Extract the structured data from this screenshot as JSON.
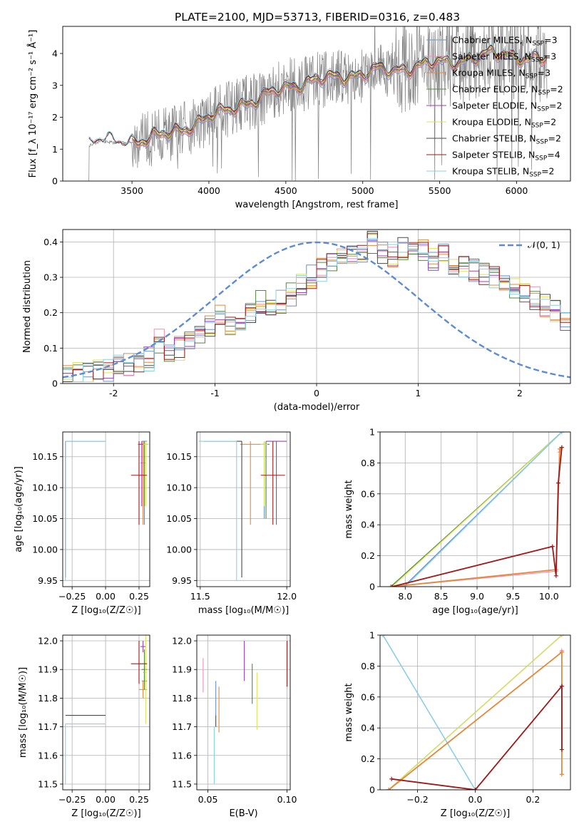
{
  "figure_title": "PLATE=2100, MJD=53713, FIBERID=0316, z=0.483",
  "colors": {
    "chab_miles": "#6a8fd0",
    "salp_miles": "#ee8fb5",
    "krou_miles": "#e5893a",
    "chab_elodie": "#4f8a3a",
    "salp_elodie": "#9b3fbf",
    "krou_elodie": "#dde35a",
    "chab_stelib": "#4a4a4a",
    "salp_stelib": "#a01818",
    "krou_stelib": "#86d2e6",
    "data": "#808080",
    "grid": "#b0b0b0"
  },
  "chart_data": [
    {
      "id": "spectrum",
      "type": "line",
      "xlabel": "wavelength [Angstrom, rest frame]",
      "ylabel": "Flux [f_λ 10⁻¹⁷ erg cm⁻² s⁻¹ Å⁻¹]",
      "xlim": [
        3050,
        6350
      ],
      "ylim": [
        0,
        4.85
      ],
      "xticks": [
        3500,
        4000,
        4500,
        5000,
        5500,
        6000
      ],
      "yticks": [
        0,
        1,
        2,
        3,
        4
      ],
      "grid": false,
      "legend": "top-right",
      "legend_entries": [
        {
          "label": "Chabrier MILES, N",
          "sub": "SSP",
          "suffix": "=3",
          "color_key": "chab_miles"
        },
        {
          "label": "Salpeter MILES, N",
          "sub": "SSP",
          "suffix": "=3",
          "color_key": "salp_miles"
        },
        {
          "label": "Kroupa MILES, N",
          "sub": "SSP",
          "suffix": "=3",
          "color_key": "krou_miles"
        },
        {
          "label": "Chabrier ELODIE, N",
          "sub": "SSP",
          "suffix": "=2",
          "color_key": "chab_elodie"
        },
        {
          "label": "Salpeter ELODIE, N",
          "sub": "SSP",
          "suffix": "=2",
          "color_key": "salp_elodie"
        },
        {
          "label": "Kroupa ELODIE, N",
          "sub": "SSP",
          "suffix": "=2",
          "color_key": "krou_elodie"
        },
        {
          "label": "Chabrier STELIB, N",
          "sub": "SSP",
          "suffix": "=2",
          "color_key": "chab_stelib"
        },
        {
          "label": "Salpeter STELIB, N",
          "sub": "SSP",
          "suffix": "=4",
          "color_key": "salp_stelib"
        },
        {
          "label": "Kroupa STELIB, N",
          "sub": "SSP",
          "suffix": "=2",
          "color_key": "krou_stelib"
        }
      ],
      "model_continuum": {
        "x": [
          3220,
          3300,
          3400,
          3500,
          3600,
          3700,
          3800,
          3900,
          4000,
          4100,
          4200,
          4300,
          4400,
          4500,
          4600,
          4700,
          4800,
          4900,
          5000,
          5100,
          5200,
          5300,
          5400,
          5500,
          5600,
          5700,
          5800,
          5900,
          6000,
          6100,
          6200
        ],
        "y": [
          1.12,
          1.25,
          1.2,
          1.22,
          1.3,
          1.45,
          1.6,
          1.75,
          2.0,
          2.2,
          2.4,
          2.5,
          2.75,
          2.95,
          3.05,
          3.15,
          3.25,
          3.3,
          3.35,
          3.5,
          3.45,
          3.55,
          3.65,
          3.7,
          3.75,
          3.85,
          3.95,
          4.0,
          3.9,
          3.85,
          3.8
        ]
      },
      "data_noise_start": 3500
    },
    {
      "id": "residuals",
      "type": "line",
      "xlabel": "(data-model)/error",
      "ylabel": "Normed distribution",
      "xlim": [
        -2.5,
        2.5
      ],
      "ylim": [
        0,
        0.435
      ],
      "xticks": [
        -2,
        -1,
        0,
        1,
        2
      ],
      "yticks": [
        0.0,
        0.1,
        0.2,
        0.3,
        0.4
      ],
      "grid": true,
      "legend": "top-right",
      "legend_label": "𝒩(0, 1)",
      "gaussian": {
        "mean": 0,
        "sigma": 1,
        "color": "#5b8bd6"
      },
      "hist_base": {
        "bin_width": 0.1,
        "x_start": -2.5,
        "values": [
          0.02,
          0.025,
          0.03,
          0.035,
          0.04,
          0.045,
          0.05,
          0.06,
          0.07,
          0.12,
          0.08,
          0.1,
          0.12,
          0.14,
          0.16,
          0.2,
          0.17,
          0.18,
          0.2,
          0.23,
          0.21,
          0.23,
          0.25,
          0.28,
          0.3,
          0.32,
          0.34,
          0.35,
          0.36,
          0.37,
          0.4,
          0.37,
          0.36,
          0.38,
          0.39,
          0.38,
          0.35,
          0.36,
          0.34,
          0.33,
          0.32,
          0.31,
          0.3,
          0.28,
          0.27,
          0.25,
          0.24,
          0.22,
          0.2,
          0.18
        ]
      }
    },
    {
      "id": "age_vs_Z",
      "type": "scatter",
      "xlabel": "Z [log₁₀(Z/Z☉)]",
      "ylabel": "age  [log₁₀(age/yr)]",
      "xlim": [
        -0.32,
        0.33
      ],
      "ylim": [
        9.94,
        10.19
      ],
      "xticks": [
        -0.25,
        0.0,
        0.25
      ],
      "xtick_labels": [
        "−0.25",
        "0.00",
        "0.25"
      ],
      "yticks": [
        9.95,
        10.0,
        10.05,
        10.1,
        10.15
      ],
      "ytick_labels": [
        "9.95",
        "10.00",
        "10.05",
        "10.10",
        "10.15"
      ],
      "grid": true,
      "points": [
        {
          "x": 0.29,
          "y": 10.175,
          "xe": 0.02,
          "ye": [
            0.135,
            0.0
          ],
          "c": "chab_miles"
        },
        {
          "x": 0.28,
          "y": 10.14,
          "xe": 0.02,
          "ye": [
            0.09,
            0.035
          ],
          "c": "salp_miles"
        },
        {
          "x": 0.28,
          "y": 10.17,
          "xe": 0.04,
          "ye": [
            0.13,
            0.005
          ],
          "c": "krou_miles"
        },
        {
          "x": 0.29,
          "y": 10.17,
          "xe": 0.02,
          "ye": [
            0.1,
            0.005
          ],
          "c": "chab_elodie"
        },
        {
          "x": 0.27,
          "y": 10.17,
          "xe": 0.02,
          "ye": [
            0.1,
            0.005
          ],
          "c": "salp_elodie"
        },
        {
          "x": 0.3,
          "y": 10.17,
          "xe": 0.02,
          "ye": [
            0.1,
            0.005
          ],
          "c": "krou_elodie"
        },
        {
          "x": -0.3,
          "y": 10.175,
          "xe": [
            0.0,
            0.3
          ],
          "ye": [
            0.22,
            0.0
          ],
          "c": "chab_stelib"
        },
        {
          "x": 0.25,
          "y": 10.12,
          "xe": 0.06,
          "ye": [
            0.08,
            0.055
          ],
          "c": "salp_stelib"
        },
        {
          "x": -0.3,
          "y": 10.175,
          "xe": [
            0.0,
            0.3
          ],
          "ye": [
            0.225,
            0.0
          ],
          "c": "krou_stelib"
        }
      ]
    },
    {
      "id": "age_vs_mass",
      "type": "scatter",
      "xlabel": "mass [log₁₀(M/M☉)]",
      "ylabel": "",
      "xlim": [
        11.48,
        12.02
      ],
      "ylim": [
        9.94,
        10.19
      ],
      "xticks": [
        11.5,
        12.0
      ],
      "xtick_labels": [
        "11.5",
        "12.0"
      ],
      "yticks": [
        9.95,
        10.0,
        10.05,
        10.1,
        10.15
      ],
      "ytick_labels": [
        "9.95",
        "10.00",
        "10.05",
        "10.10",
        "10.15"
      ],
      "grid": true,
      "points": [
        {
          "x": 11.87,
          "y": 10.17,
          "xe": 0.02,
          "ye": [
            0.12,
            0.005
          ],
          "c": "chab_miles"
        },
        {
          "x": 11.88,
          "y": 10.17,
          "xe": 0.02,
          "ye": [
            0.1,
            0.005
          ],
          "c": "salp_miles"
        },
        {
          "x": 11.79,
          "y": 10.17,
          "xe": 0.06,
          "ye": [
            0.13,
            0.005
          ],
          "c": "krou_miles"
        },
        {
          "x": 11.88,
          "y": 10.17,
          "xe": 0.02,
          "ye": [
            0.12,
            0.005
          ],
          "c": "chab_elodie"
        },
        {
          "x": 11.94,
          "y": 10.175,
          "xe": 0.06,
          "ye": [
            0.135,
            0.0
          ],
          "c": "salp_elodie"
        },
        {
          "x": 11.87,
          "y": 10.17,
          "xe": 0.02,
          "ye": [
            0.1,
            0.005
          ],
          "c": "krou_elodie"
        },
        {
          "x": 11.74,
          "y": 10.175,
          "xe": [
            0.22,
            0.0
          ],
          "ye": [
            0.22,
            0.0
          ],
          "c": "chab_stelib"
        },
        {
          "x": 11.92,
          "y": 10.12,
          "xe": 0.07,
          "ye": [
            0.08,
            0.055
          ],
          "c": "salp_stelib"
        },
        {
          "x": 11.71,
          "y": 10.175,
          "xe": [
            0.22,
            0.0
          ],
          "ye": [
            0.225,
            0.0
          ],
          "c": "krou_stelib"
        }
      ]
    },
    {
      "id": "weight_vs_age",
      "type": "line",
      "xlabel": "age  [log₁₀(age/yr)]",
      "ylabel": "mass weight",
      "xlim": [
        7.65,
        10.3
      ],
      "ylim": [
        0,
        1.0
      ],
      "xticks": [
        8.0,
        8.5,
        9.0,
        9.5,
        10.0
      ],
      "xtick_labels": [
        "8.0",
        "8.5",
        "9.0",
        "9.5",
        "10.0"
      ],
      "yticks": [
        0.0,
        0.2,
        0.4,
        0.6,
        0.8,
        1.0
      ],
      "grid": true,
      "series": [
        {
          "c": "chab_elodie",
          "x": [
            7.8,
            10.18
          ],
          "y": [
            0.0,
            1.0
          ]
        },
        {
          "c": "krou_elodie",
          "x": [
            7.82,
            10.18
          ],
          "y": [
            0.0,
            1.0
          ]
        },
        {
          "c": "chab_miles",
          "x": [
            7.98,
            10.18
          ],
          "y": [
            0.0,
            1.0
          ]
        },
        {
          "c": "krou_stelib",
          "x": [
            8.0,
            10.18
          ],
          "y": [
            0.0,
            1.0
          ]
        },
        {
          "c": "salp_miles",
          "x": [
            7.82,
            10.1,
            10.15,
            10.18
          ],
          "y": [
            0.0,
            0.1,
            0.87,
            0.9
          ]
        },
        {
          "c": "krou_miles",
          "x": [
            7.82,
            10.1,
            10.15,
            10.18
          ],
          "y": [
            0.0,
            0.11,
            0.89,
            0.9
          ]
        },
        {
          "c": "salp_stelib",
          "x": [
            7.82,
            10.05,
            10.1,
            10.13,
            10.18
          ],
          "y": [
            0.0,
            0.26,
            0.07,
            0.67,
            0.9
          ]
        }
      ]
    },
    {
      "id": "mass_vs_Z",
      "type": "scatter",
      "xlabel": "Z [log₁₀(Z/Z☉)]",
      "ylabel": "mass [log₁₀(M/M☉)]",
      "xlim": [
        -0.32,
        0.33
      ],
      "ylim": [
        11.48,
        12.02
      ],
      "xticks": [
        -0.25,
        0.0,
        0.25
      ],
      "xtick_labels": [
        "−0.25",
        "0.00",
        "0.25"
      ],
      "yticks": [
        11.5,
        11.6,
        11.7,
        11.8,
        11.9,
        12.0
      ],
      "ytick_labels": [
        "11.5",
        "11.6",
        "11.7",
        "11.8",
        "11.9",
        "12.0"
      ],
      "grid": true,
      "points": [
        {
          "x": 0.29,
          "y": 11.86,
          "xe": 0.02,
          "ye": 0.02,
          "c": "chab_miles"
        },
        {
          "x": 0.29,
          "y": 11.89,
          "xe": 0.01,
          "ye": 0.02,
          "c": "salp_miles"
        },
        {
          "x": 0.28,
          "y": 11.83,
          "xe": 0.03,
          "ye": 0.03,
          "c": "krou_miles"
        },
        {
          "x": 0.29,
          "y": 11.9,
          "xe": 0.02,
          "ye": 0.07,
          "c": "chab_elodie"
        },
        {
          "x": 0.28,
          "y": 11.98,
          "xe": 0.02,
          "ye": 0.02,
          "c": "salp_elodie"
        },
        {
          "x": 0.3,
          "y": 11.89,
          "xe": 0.01,
          "ye": 0.18,
          "c": "krou_elodie"
        },
        {
          "x": -0.3,
          "y": 11.74,
          "xe": [
            0.0,
            0.3
          ],
          "ye": [
            0.0,
            0.0
          ],
          "c": "chab_stelib"
        },
        {
          "x": 0.25,
          "y": 11.92,
          "xe": 0.06,
          "ye": [
            0.07,
            0.08
          ],
          "c": "salp_stelib"
        },
        {
          "x": -0.3,
          "y": 11.71,
          "xe": [
            0.0,
            0.3
          ],
          "ye": [
            0.21,
            0.0
          ],
          "c": "krou_stelib"
        }
      ]
    },
    {
      "id": "mass_vs_EBV",
      "type": "scatter",
      "xlabel": "E(B-V)",
      "ylabel": "",
      "xlim": [
        0.043,
        0.102
      ],
      "ylim": [
        11.48,
        12.02
      ],
      "xticks": [
        0.05,
        0.1
      ],
      "xtick_labels": [
        "0.05",
        "0.10"
      ],
      "yticks": [
        11.5,
        11.6,
        11.7,
        11.8,
        11.9,
        12.0
      ],
      "ytick_labels": [
        "11.5",
        "11.6",
        "11.7",
        "11.8",
        "11.9",
        "12.0"
      ],
      "grid": true,
      "points": [
        {
          "x": 0.055,
          "y": 11.8,
          "xe": 0,
          "ye": 0.06,
          "c": "chab_miles"
        },
        {
          "x": 0.047,
          "y": 11.88,
          "xe": 0,
          "ye": 0.06,
          "c": "salp_miles"
        },
        {
          "x": 0.057,
          "y": 11.76,
          "xe": 0,
          "ye": 0.08,
          "c": "krou_miles"
        },
        {
          "x": 0.078,
          "y": 11.85,
          "xe": 0,
          "ye": 0.07,
          "c": "chab_elodie"
        },
        {
          "x": 0.073,
          "y": 11.93,
          "xe": 0,
          "ye": 0.07,
          "c": "salp_elodie"
        },
        {
          "x": 0.081,
          "y": 11.79,
          "xe": 0,
          "ye": 0.1,
          "c": "krou_elodie"
        },
        {
          "x": 0.055,
          "y": 11.72,
          "xe": 0,
          "ye": 0.02,
          "c": "chab_stelib"
        },
        {
          "x": 0.1,
          "y": 11.92,
          "xe": 0,
          "ye": 0.08,
          "c": "salp_stelib"
        },
        {
          "x": 0.054,
          "y": 11.6,
          "xe": 0,
          "ye": 0.1,
          "c": "krou_stelib"
        }
      ]
    },
    {
      "id": "weight_vs_Z",
      "type": "line",
      "xlabel": "Z [log₁₀(Z/Z☉)]",
      "ylabel": "mass weight",
      "xlim": [
        -0.33,
        0.33
      ],
      "ylim": [
        0,
        1.0
      ],
      "xticks": [
        -0.2,
        0.0,
        0.2
      ],
      "xtick_labels": [
        "−0.2",
        "0.0",
        "0.2"
      ],
      "yticks": [
        0.0,
        0.2,
        0.4,
        0.6,
        0.8,
        1.0
      ],
      "grid": true,
      "series": [
        {
          "c": "chab_elodie",
          "x": [
            -0.3,
            0.3
          ],
          "y": [
            0.0,
            1.0
          ]
        },
        {
          "c": "krou_elodie",
          "x": [
            -0.3,
            0.3
          ],
          "y": [
            0.0,
            1.0
          ]
        },
        {
          "c": "chab_miles",
          "x": [
            -0.32,
            0.0
          ],
          "y": [
            1.0,
            0.0
          ]
        },
        {
          "c": "krou_stelib",
          "x": [
            -0.32,
            0.0
          ],
          "y": [
            1.0,
            0.0
          ]
        },
        {
          "c": "salp_miles",
          "x": [
            -0.3,
            0.3,
            0.3,
            0.3
          ],
          "y": [
            0.0,
            0.89,
            0.1,
            0.9
          ]
        },
        {
          "c": "krou_miles",
          "x": [
            -0.3,
            0.3,
            0.3
          ],
          "y": [
            0.0,
            0.89,
            0.1
          ]
        },
        {
          "c": "salp_stelib",
          "x": [
            -0.29,
            0.0,
            0.3,
            0.3
          ],
          "y": [
            0.07,
            0.0,
            0.67,
            0.26
          ]
        }
      ]
    }
  ]
}
